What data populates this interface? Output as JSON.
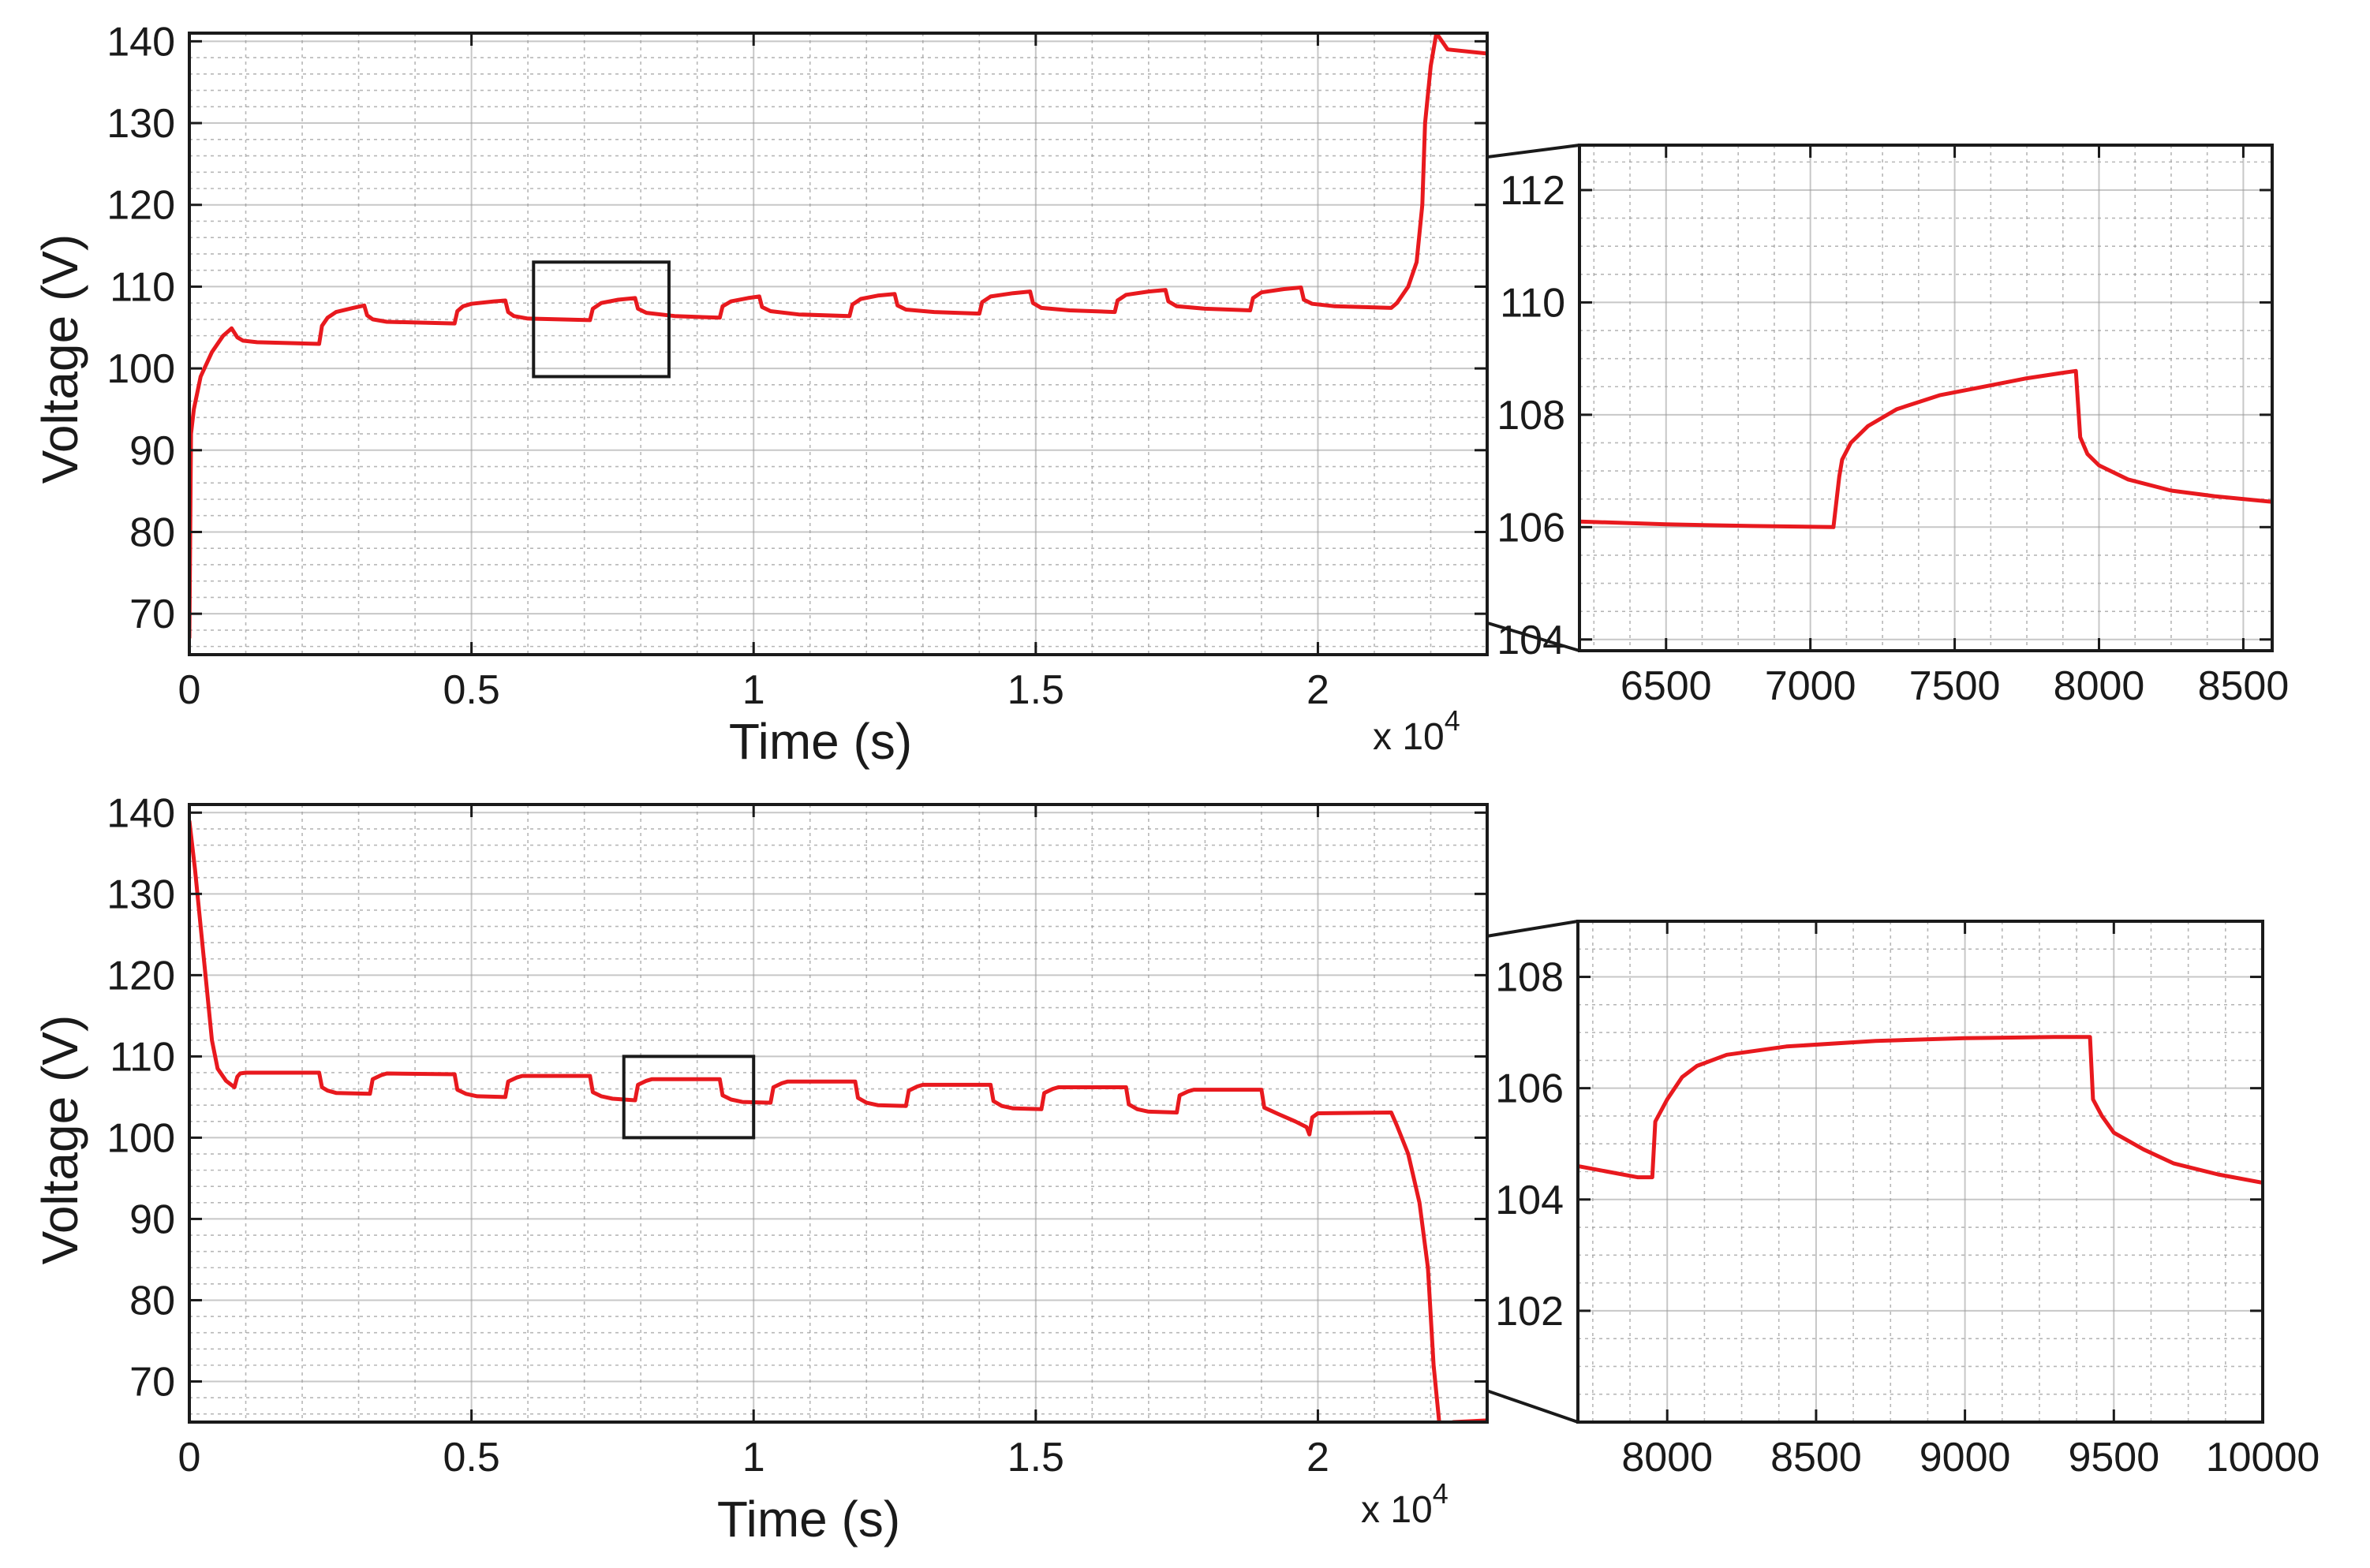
{
  "figure": {
    "line_color": "#e8191e",
    "axis_color": "#1a1a1a",
    "grid_color": "#9a9a9a",
    "background": "#ffffff"
  },
  "chart_data": [
    {
      "id": "top-main",
      "type": "line",
      "xlabel": "Time (s)",
      "ylabel": "Voltage (V)",
      "x_exponent_label": "x 10",
      "x_exponent_power": "4",
      "xlim": [
        0,
        23000
      ],
      "ylim": [
        65,
        141
      ],
      "xticks": [
        0,
        5000,
        10000,
        15000,
        20000
      ],
      "xtick_labels": [
        "0",
        "0.5",
        "1",
        "1.5",
        "2"
      ],
      "yticks": [
        70,
        80,
        90,
        100,
        110,
        120,
        130,
        140
      ],
      "ytick_labels": [
        "70",
        "80",
        "90",
        "100",
        "110",
        "120",
        "130",
        "140"
      ],
      "grid": true,
      "zoom_box": {
        "x": [
          6100,
          8500
        ],
        "y": [
          99,
          113
        ]
      },
      "series": [
        {
          "x": [
            0,
            30,
            80,
            200,
            400,
            600,
            700,
            750,
            850,
            950,
            1200,
            2300,
            2350,
            2450,
            2600,
            2900,
            3100,
            3150,
            3250,
            3500,
            4700,
            4750,
            4850,
            5000,
            5400,
            5600,
            5650,
            5750,
            6000,
            7100,
            7150,
            7300,
            7600,
            7900,
            7950,
            8100,
            8600,
            9400,
            9450,
            9600,
            9900,
            10100,
            10150,
            10300,
            10800,
            11700,
            11750,
            11900,
            12200,
            12500,
            12550,
            12700,
            13200,
            14000,
            14050,
            14200,
            14600,
            14900,
            14950,
            15100,
            15600,
            16400,
            16450,
            16600,
            17000,
            17300,
            17350,
            17500,
            18000,
            18800,
            18850,
            19000,
            19400,
            19700,
            19750,
            19900,
            20300,
            21300,
            21400,
            21600,
            21750,
            21850,
            21900,
            22000,
            22100,
            22300,
            23000
          ],
          "y": [
            67,
            92,
            95,
            99,
            102,
            104,
            104.6,
            104.9,
            103.8,
            103.4,
            103.2,
            103.0,
            105.2,
            106.2,
            106.9,
            107.4,
            107.7,
            106.5,
            106.0,
            105.7,
            105.5,
            107.0,
            107.6,
            107.9,
            108.2,
            108.3,
            106.9,
            106.4,
            106.1,
            105.9,
            107.3,
            108.0,
            108.4,
            108.6,
            107.3,
            106.8,
            106.4,
            106.2,
            107.6,
            108.2,
            108.6,
            108.8,
            107.5,
            107.0,
            106.6,
            106.4,
            107.8,
            108.5,
            108.9,
            109.1,
            107.7,
            107.2,
            106.9,
            106.7,
            108.1,
            108.8,
            109.2,
            109.4,
            108.0,
            107.4,
            107.1,
            106.9,
            108.3,
            109.0,
            109.4,
            109.6,
            108.2,
            107.6,
            107.3,
            107.1,
            108.6,
            109.3,
            109.7,
            109.9,
            108.4,
            107.9,
            107.6,
            107.4,
            108.0,
            110.0,
            113.0,
            120.0,
            130.0,
            137.0,
            141.0,
            139.0,
            138.5
          ]
        }
      ]
    },
    {
      "id": "top-zoom",
      "type": "line",
      "xlabel": "",
      "ylabel": "",
      "xlim": [
        6200,
        8600
      ],
      "ylim": [
        103.8,
        112.8
      ],
      "xticks": [
        6500,
        7000,
        7500,
        8000,
        8500
      ],
      "xtick_labels": [
        "6500",
        "7000",
        "7500",
        "8000",
        "8500"
      ],
      "yticks": [
        104,
        106,
        108,
        110,
        112
      ],
      "ytick_labels": [
        "104",
        "106",
        "108",
        "110",
        "112"
      ],
      "grid": true,
      "series": [
        {
          "x": [
            6200,
            6500,
            6800,
            7080,
            7100,
            7110,
            7140,
            7200,
            7300,
            7450,
            7600,
            7750,
            7880,
            7920,
            7935,
            7960,
            8000,
            8100,
            8250,
            8400,
            8600
          ],
          "y": [
            106.1,
            106.05,
            106.02,
            106.0,
            106.9,
            107.2,
            107.5,
            107.8,
            108.1,
            108.35,
            108.5,
            108.65,
            108.75,
            108.78,
            107.6,
            107.3,
            107.1,
            106.85,
            106.65,
            106.55,
            106.45
          ]
        }
      ]
    },
    {
      "id": "bottom-main",
      "type": "line",
      "xlabel": "Time (s)",
      "ylabel": "Voltage (V)",
      "x_exponent_label": "x 10",
      "x_exponent_power": "4",
      "xlim": [
        0,
        23000
      ],
      "ylim": [
        65,
        141
      ],
      "xticks": [
        0,
        5000,
        10000,
        15000,
        20000
      ],
      "xtick_labels": [
        "0",
        "0.5",
        "1",
        "1.5",
        "2"
      ],
      "yticks": [
        70,
        80,
        90,
        100,
        110,
        120,
        130,
        140
      ],
      "ytick_labels": [
        "70",
        "80",
        "90",
        "100",
        "110",
        "120",
        "130",
        "140"
      ],
      "grid": true,
      "zoom_box": {
        "x": [
          7700,
          10000
        ],
        "y": [
          100,
          110
        ]
      },
      "series": [
        {
          "x": [
            0,
            100,
            200,
            300,
            400,
            500,
            650,
            800,
            850,
            900,
            1000,
            2300,
            2350,
            2450,
            2600,
            3200,
            3250,
            3400,
            3500,
            4700,
            4750,
            4900,
            5100,
            5600,
            5650,
            5800,
            5900,
            7100,
            7150,
            7300,
            7500,
            7900,
            7950,
            8100,
            8200,
            9400,
            9450,
            9600,
            9800,
            10300,
            10350,
            10500,
            10600,
            11800,
            11850,
            12000,
            12200,
            12700,
            12750,
            12900,
            13000,
            14200,
            14250,
            14400,
            14600,
            15100,
            15150,
            15300,
            15400,
            16600,
            16650,
            16800,
            17000,
            17500,
            17550,
            17700,
            17800,
            19000,
            19050,
            19300,
            19600,
            19800,
            19850,
            19900,
            20000,
            21300,
            21400,
            21600,
            21800,
            21950,
            22050,
            22150,
            22200,
            22400,
            23000
          ],
          "y": [
            139,
            133,
            126,
            119,
            112,
            108.5,
            107,
            106.2,
            107.5,
            107.9,
            108.0,
            108.0,
            106.2,
            105.8,
            105.5,
            105.4,
            107.2,
            107.7,
            107.9,
            107.8,
            105.9,
            105.4,
            105.1,
            105.0,
            106.9,
            107.4,
            107.6,
            107.6,
            105.6,
            105.1,
            104.8,
            104.6,
            106.5,
            107.0,
            107.2,
            107.2,
            105.2,
            104.7,
            104.4,
            104.3,
            106.2,
            106.7,
            106.9,
            106.9,
            104.9,
            104.3,
            104.0,
            103.9,
            105.8,
            106.3,
            106.5,
            106.5,
            104.5,
            103.9,
            103.6,
            103.5,
            105.5,
            106.0,
            106.2,
            106.2,
            104.1,
            103.5,
            103.2,
            103.1,
            105.2,
            105.7,
            105.9,
            105.9,
            103.7,
            102.9,
            102.0,
            101.3,
            100.4,
            102.5,
            103.0,
            103.1,
            101.5,
            98.0,
            92.0,
            84.0,
            72.0,
            65.0,
            64.6,
            65.0,
            65.2
          ]
        }
      ]
    },
    {
      "id": "bottom-zoom",
      "type": "line",
      "xlabel": "",
      "ylabel": "",
      "xlim": [
        7700,
        10000
      ],
      "ylim": [
        100,
        109
      ],
      "xticks": [
        8000,
        8500,
        9000,
        9500,
        10000
      ],
      "xtick_labels": [
        "8000",
        "8500",
        "9000",
        "9500",
        "10000"
      ],
      "yticks": [
        102,
        104,
        106,
        108
      ],
      "ytick_labels": [
        "102",
        "104",
        "106",
        "108"
      ],
      "grid": true,
      "series": [
        {
          "x": [
            7700,
            7800,
            7900,
            7950,
            7960,
            8000,
            8050,
            8100,
            8200,
            8400,
            8700,
            9000,
            9300,
            9420,
            9430,
            9460,
            9500,
            9600,
            9700,
            9850,
            10000
          ],
          "y": [
            104.6,
            104.5,
            104.4,
            104.4,
            105.4,
            105.8,
            106.2,
            106.4,
            106.6,
            106.75,
            106.85,
            106.9,
            106.92,
            106.92,
            105.8,
            105.5,
            105.2,
            104.9,
            104.65,
            104.45,
            104.3
          ]
        }
      ]
    }
  ]
}
